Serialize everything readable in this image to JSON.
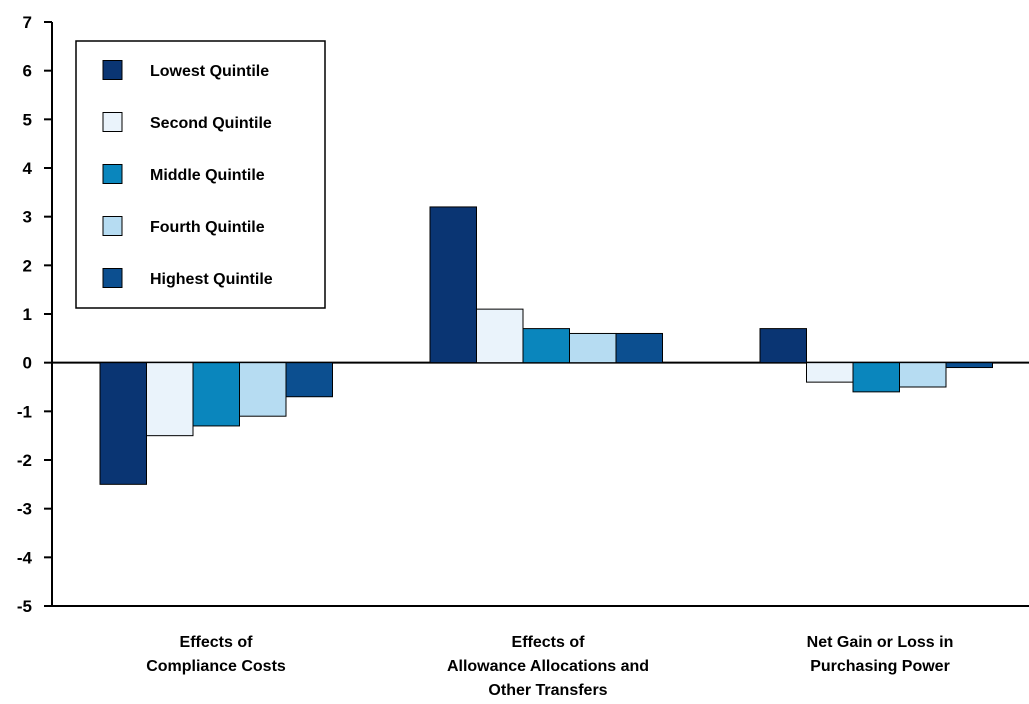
{
  "chart_data": {
    "type": "bar",
    "title": "",
    "xlabel": "",
    "ylabel": "",
    "ylim": [
      -5,
      7
    ],
    "yticks": [
      7,
      6,
      5,
      4,
      3,
      2,
      1,
      0,
      -1,
      -2,
      -3,
      -4,
      -5
    ],
    "grid": false,
    "legend_position": "top-left",
    "categories": [
      [
        "Effects of",
        "Compliance Costs"
      ],
      [
        "Effects of",
        "Allowance Allocations and",
        "Other Transfers"
      ],
      [
        "Net Gain or Loss in",
        "Purchasing Power"
      ]
    ],
    "series": [
      {
        "name": "Lowest Quintile",
        "color": "#0a3573",
        "values": [
          -2.5,
          3.2,
          0.7
        ]
      },
      {
        "name": "Second Quintile",
        "color": "#eaf3fb",
        "values": [
          -1.5,
          1.1,
          -0.4
        ]
      },
      {
        "name": "Middle Quintile",
        "color": "#0a86bd",
        "values": [
          -1.3,
          0.7,
          -0.6
        ]
      },
      {
        "name": "Fourth Quintile",
        "color": "#b6dcf2",
        "values": [
          -1.1,
          0.6,
          -0.5
        ]
      },
      {
        "name": "Highest Quintile",
        "color": "#0c4f90",
        "values": [
          -0.7,
          0.6,
          -0.1
        ]
      }
    ]
  }
}
